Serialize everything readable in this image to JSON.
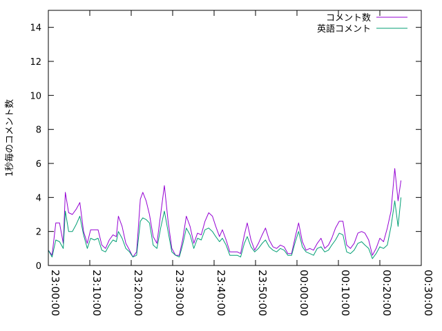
{
  "chart_data": {
    "type": "line",
    "title": "",
    "xlabel": "",
    "ylabel": "1秒毎のコメント数",
    "ylim": [
      0,
      15
    ],
    "yticks": [
      0,
      2,
      4,
      6,
      8,
      10,
      12,
      14
    ],
    "xlim_minutes": [
      0,
      90
    ],
    "xticks": [
      {
        "t": 0,
        "label": "23:00:00"
      },
      {
        "t": 10,
        "label": "23:10:00"
      },
      {
        "t": 20,
        "label": "23:20:00"
      },
      {
        "t": 30,
        "label": "23:30:00"
      },
      {
        "t": 40,
        "label": "23:40:00"
      },
      {
        "t": 50,
        "label": "23:50:00"
      },
      {
        "t": 60,
        "label": "00:00:00"
      },
      {
        "t": 70,
        "label": "00:10:00"
      },
      {
        "t": 80,
        "label": "00:20:00"
      },
      {
        "t": 90,
        "label": "00:30:00"
      }
    ],
    "legend_position": "top-right",
    "grid": false,
    "series": [
      {
        "name": "コメント数",
        "color": "#9400d3",
        "points": [
          [
            0,
            0.9
          ],
          [
            0.9,
            0.6
          ],
          [
            1.8,
            2.5
          ],
          [
            2.7,
            2.5
          ],
          [
            3.6,
            1.3
          ],
          [
            4.1,
            4.3
          ],
          [
            4.9,
            3.1
          ],
          [
            5.8,
            3.0
          ],
          [
            6.7,
            3.3
          ],
          [
            7.6,
            3.7
          ],
          [
            8.5,
            2.0
          ],
          [
            9.4,
            1.3
          ],
          [
            10.2,
            2.1
          ],
          [
            11.1,
            2.1
          ],
          [
            12.0,
            2.1
          ],
          [
            12.9,
            1.2
          ],
          [
            13.8,
            1.0
          ],
          [
            14.7,
            1.5
          ],
          [
            15.6,
            1.8
          ],
          [
            16.4,
            1.7
          ],
          [
            16.9,
            2.9
          ],
          [
            17.8,
            2.3
          ],
          [
            18.7,
            1.3
          ],
          [
            19.6,
            0.9
          ],
          [
            20.4,
            0.5
          ],
          [
            21.3,
            0.8
          ],
          [
            22.2,
            3.9
          ],
          [
            22.8,
            4.3
          ],
          [
            23.6,
            3.8
          ],
          [
            24.4,
            3.0
          ],
          [
            25.3,
            1.7
          ],
          [
            26.2,
            1.3
          ],
          [
            27.1,
            3.0
          ],
          [
            28.0,
            4.7
          ],
          [
            28.9,
            2.6
          ],
          [
            29.8,
            1.0
          ],
          [
            30.7,
            0.6
          ],
          [
            31.6,
            0.6
          ],
          [
            32.4,
            1.5
          ],
          [
            33.3,
            2.9
          ],
          [
            34.2,
            2.3
          ],
          [
            35.1,
            1.3
          ],
          [
            36.0,
            1.9
          ],
          [
            36.9,
            1.8
          ],
          [
            37.8,
            2.6
          ],
          [
            38.7,
            3.1
          ],
          [
            39.6,
            2.9
          ],
          [
            40.4,
            2.3
          ],
          [
            41.3,
            1.7
          ],
          [
            42.0,
            2.1
          ],
          [
            42.9,
            1.5
          ],
          [
            43.8,
            0.8
          ],
          [
            44.7,
            0.8
          ],
          [
            45.6,
            0.8
          ],
          [
            46.4,
            0.7
          ],
          [
            47.3,
            1.8
          ],
          [
            48.0,
            2.5
          ],
          [
            48.9,
            1.5
          ],
          [
            49.8,
            0.9
          ],
          [
            50.7,
            1.3
          ],
          [
            51.6,
            1.8
          ],
          [
            52.4,
            2.2
          ],
          [
            53.3,
            1.5
          ],
          [
            54.2,
            1.1
          ],
          [
            55.1,
            1.0
          ],
          [
            56.0,
            1.2
          ],
          [
            56.9,
            1.1
          ],
          [
            57.8,
            0.7
          ],
          [
            58.7,
            0.7
          ],
          [
            59.6,
            1.7
          ],
          [
            60.4,
            2.5
          ],
          [
            61.3,
            1.4
          ],
          [
            62.2,
            0.9
          ],
          [
            63.1,
            1.0
          ],
          [
            64.0,
            0.9
          ],
          [
            64.9,
            1.3
          ],
          [
            65.8,
            1.6
          ],
          [
            66.7,
            1.0
          ],
          [
            67.6,
            1.2
          ],
          [
            68.4,
            1.6
          ],
          [
            69.3,
            2.2
          ],
          [
            70.2,
            2.6
          ],
          [
            71.1,
            2.6
          ],
          [
            72.0,
            1.2
          ],
          [
            72.9,
            1.0
          ],
          [
            73.8,
            1.3
          ],
          [
            74.7,
            1.9
          ],
          [
            75.6,
            2.0
          ],
          [
            76.4,
            1.9
          ],
          [
            77.3,
            1.5
          ],
          [
            78.2,
            0.6
          ],
          [
            79.1,
            1.0
          ],
          [
            80.0,
            1.6
          ],
          [
            80.9,
            1.4
          ],
          [
            81.8,
            2.2
          ],
          [
            82.7,
            3.2
          ],
          [
            83.6,
            5.7
          ],
          [
            84.4,
            3.8
          ],
          [
            85.1,
            5.0
          ]
        ]
      },
      {
        "name": "英語コメント",
        "color": "#009e73",
        "points": [
          [
            0,
            0.9
          ],
          [
            0.9,
            0.5
          ],
          [
            1.8,
            1.5
          ],
          [
            2.7,
            1.4
          ],
          [
            3.6,
            1.0
          ],
          [
            4.1,
            3.2
          ],
          [
            4.9,
            2.0
          ],
          [
            5.8,
            2.0
          ],
          [
            6.7,
            2.4
          ],
          [
            7.6,
            2.9
          ],
          [
            8.5,
            1.8
          ],
          [
            9.4,
            1.0
          ],
          [
            10.2,
            1.6
          ],
          [
            11.1,
            1.5
          ],
          [
            12.0,
            1.6
          ],
          [
            12.9,
            0.9
          ],
          [
            13.8,
            0.8
          ],
          [
            14.7,
            1.2
          ],
          [
            15.6,
            1.5
          ],
          [
            16.4,
            1.4
          ],
          [
            16.9,
            2.0
          ],
          [
            17.8,
            1.6
          ],
          [
            18.7,
            1.0
          ],
          [
            19.6,
            0.8
          ],
          [
            20.4,
            0.5
          ],
          [
            21.3,
            0.6
          ],
          [
            22.2,
            2.6
          ],
          [
            22.8,
            2.8
          ],
          [
            23.6,
            2.7
          ],
          [
            24.4,
            2.5
          ],
          [
            25.3,
            1.2
          ],
          [
            26.2,
            1.0
          ],
          [
            27.1,
            2.2
          ],
          [
            28.0,
            3.2
          ],
          [
            28.9,
            2.0
          ],
          [
            29.8,
            0.8
          ],
          [
            30.7,
            0.6
          ],
          [
            31.6,
            0.5
          ],
          [
            32.4,
            1.2
          ],
          [
            33.3,
            2.2
          ],
          [
            34.2,
            1.8
          ],
          [
            35.1,
            1.0
          ],
          [
            36.0,
            1.6
          ],
          [
            36.9,
            1.5
          ],
          [
            37.8,
            2.1
          ],
          [
            38.7,
            2.2
          ],
          [
            39.6,
            2.0
          ],
          [
            40.4,
            1.7
          ],
          [
            41.3,
            1.4
          ],
          [
            42.0,
            1.6
          ],
          [
            42.9,
            1.2
          ],
          [
            43.8,
            0.6
          ],
          [
            44.7,
            0.6
          ],
          [
            45.6,
            0.6
          ],
          [
            46.4,
            0.5
          ],
          [
            47.3,
            1.3
          ],
          [
            48.0,
            1.7
          ],
          [
            48.9,
            1.1
          ],
          [
            49.8,
            0.8
          ],
          [
            50.7,
            1.0
          ],
          [
            51.6,
            1.3
          ],
          [
            52.4,
            1.5
          ],
          [
            53.3,
            1.1
          ],
          [
            54.2,
            0.9
          ],
          [
            55.1,
            0.8
          ],
          [
            56.0,
            1.0
          ],
          [
            56.9,
            0.9
          ],
          [
            57.8,
            0.6
          ],
          [
            58.7,
            0.6
          ],
          [
            59.6,
            1.4
          ],
          [
            60.4,
            2.0
          ],
          [
            61.3,
            1.1
          ],
          [
            62.2,
            0.8
          ],
          [
            63.1,
            0.7
          ],
          [
            64.0,
            0.6
          ],
          [
            64.9,
            1.0
          ],
          [
            65.8,
            1.1
          ],
          [
            66.7,
            0.8
          ],
          [
            67.6,
            0.9
          ],
          [
            68.4,
            1.2
          ],
          [
            69.3,
            1.5
          ],
          [
            70.2,
            1.9
          ],
          [
            71.1,
            1.8
          ],
          [
            72.0,
            0.8
          ],
          [
            72.9,
            0.7
          ],
          [
            73.8,
            0.9
          ],
          [
            74.7,
            1.3
          ],
          [
            75.6,
            1.4
          ],
          [
            76.4,
            1.2
          ],
          [
            77.3,
            1.0
          ],
          [
            78.2,
            0.4
          ],
          [
            79.1,
            0.7
          ],
          [
            80.0,
            1.1
          ],
          [
            80.9,
            1.0
          ],
          [
            81.8,
            1.2
          ],
          [
            82.7,
            2.3
          ],
          [
            83.6,
            3.8
          ],
          [
            84.4,
            2.3
          ],
          [
            85.1,
            4.0
          ]
        ]
      }
    ]
  }
}
